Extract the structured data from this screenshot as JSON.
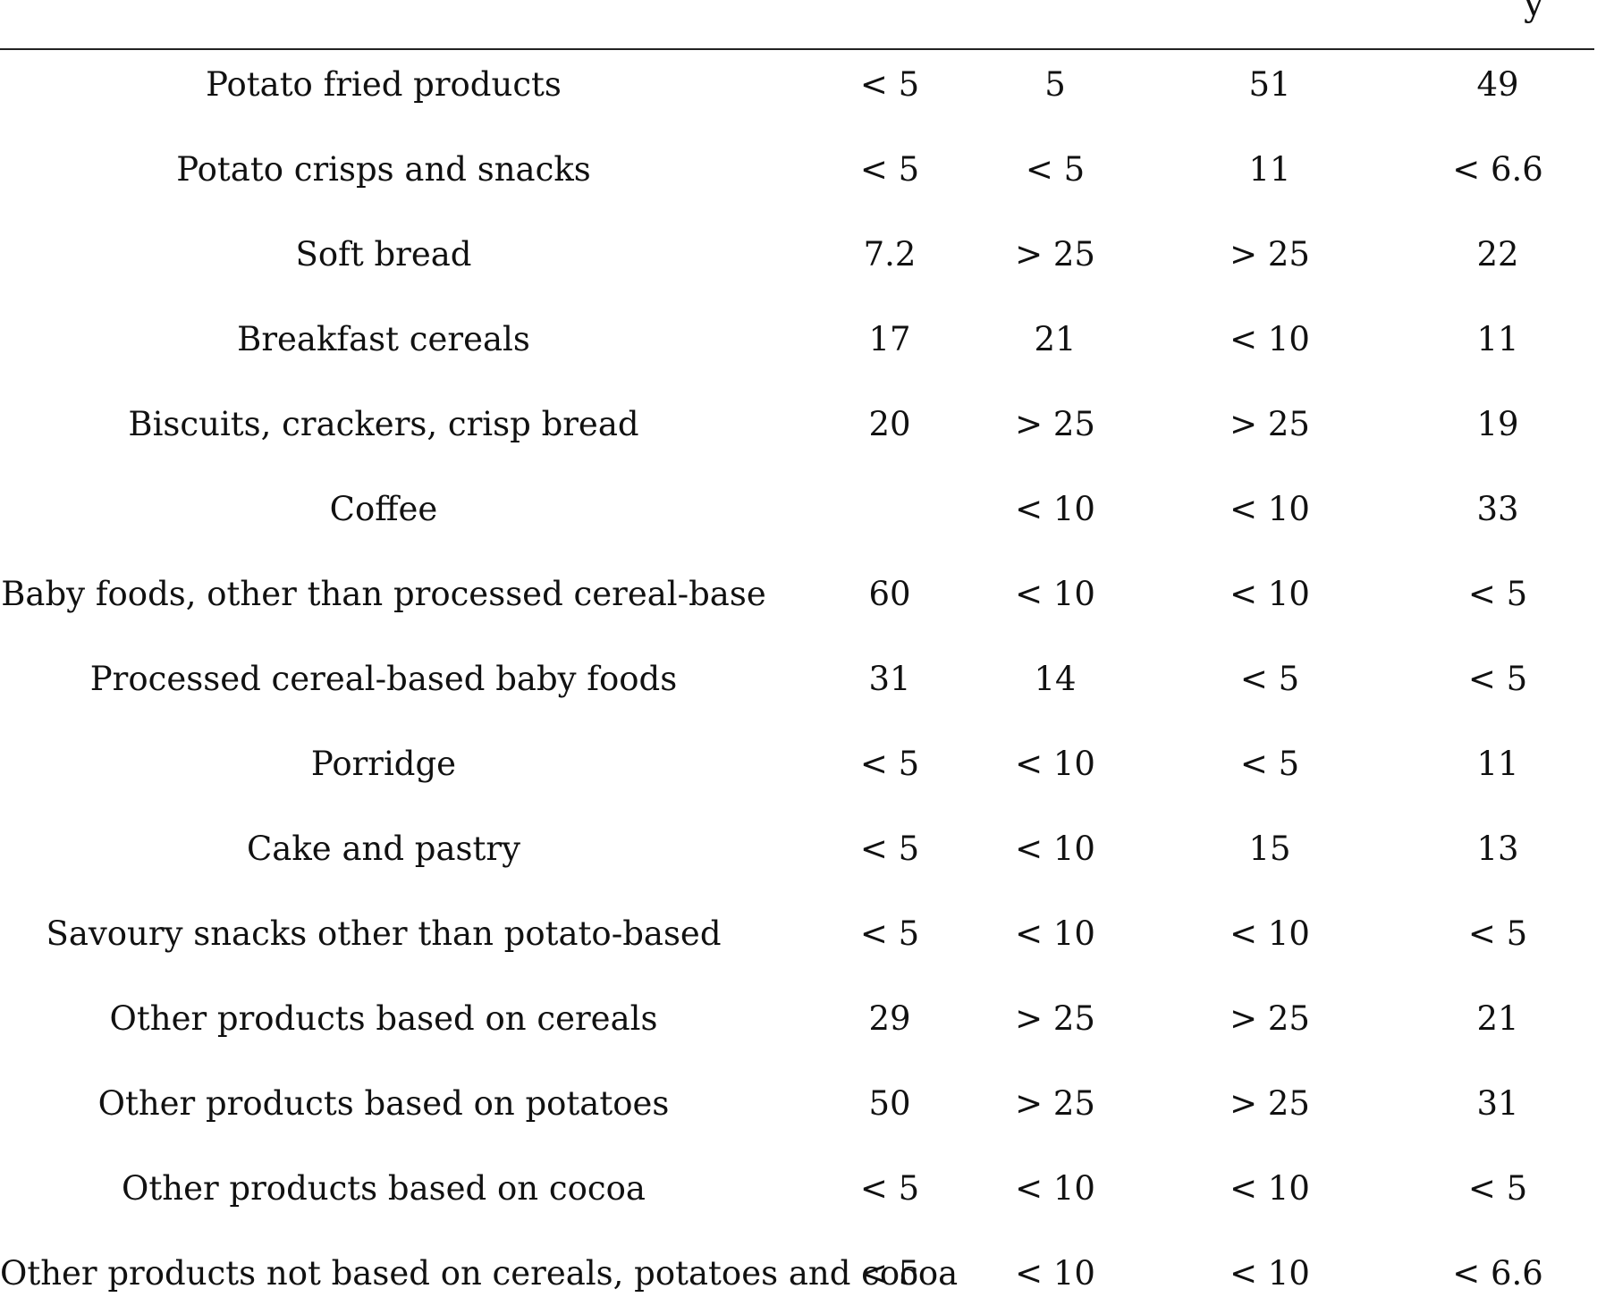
{
  "corner_fragment": "y",
  "table": {
    "rows": [
      {
        "label": "Potato fried products",
        "v1": "< 5",
        "v2": "5",
        "v3": "51",
        "v4": "49"
      },
      {
        "label": "Potato crisps and snacks",
        "v1": "< 5",
        "v2": "< 5",
        "v3": "11",
        "v4": "< 6.6"
      },
      {
        "label": "Soft bread",
        "v1": "7.2",
        "v2": "> 25",
        "v3": "> 25",
        "v4": "22"
      },
      {
        "label": "Breakfast cereals",
        "v1": "17",
        "v2": "21",
        "v3": "< 10",
        "v4": "11"
      },
      {
        "label": "Biscuits, crackers, crisp bread",
        "v1": "20",
        "v2": "> 25",
        "v3": "> 25",
        "v4": "19"
      },
      {
        "label": "Coffee",
        "v1": "",
        "v2": "< 10",
        "v3": "< 10",
        "v4": "33"
      },
      {
        "label": "Baby foods, other than processed cereal-base",
        "v1": "60",
        "v2": "< 10",
        "v3": "< 10",
        "v4": "< 5"
      },
      {
        "label": "Processed cereal-based baby foods",
        "v1": "31",
        "v2": "14",
        "v3": "< 5",
        "v4": "< 5"
      },
      {
        "label": "Porridge",
        "v1": "< 5",
        "v2": "< 10",
        "v3": "< 5",
        "v4": "11"
      },
      {
        "label": "Cake and pastry",
        "v1": "< 5",
        "v2": "< 10",
        "v3": "15",
        "v4": "13"
      },
      {
        "label": "Savoury snacks other than potato-based",
        "v1": "< 5",
        "v2": "< 10",
        "v3": "< 10",
        "v4": "< 5"
      },
      {
        "label": "Other products based on cereals",
        "v1": "29",
        "v2": "> 25",
        "v3": "> 25",
        "v4": "21"
      },
      {
        "label": "Other products based on potatoes",
        "v1": "50",
        "v2": "> 25",
        "v3": "> 25",
        "v4": "31"
      },
      {
        "label": "Other products based on cocoa",
        "v1": "< 5",
        "v2": "< 10",
        "v3": "< 10",
        "v4": "< 5"
      },
      {
        "label": "Other products not based on cereals, potatoes and cocoa",
        "v1": "< 5",
        "v2": "< 10",
        "v3": "< 10",
        "v4": "< 6.6"
      }
    ]
  }
}
